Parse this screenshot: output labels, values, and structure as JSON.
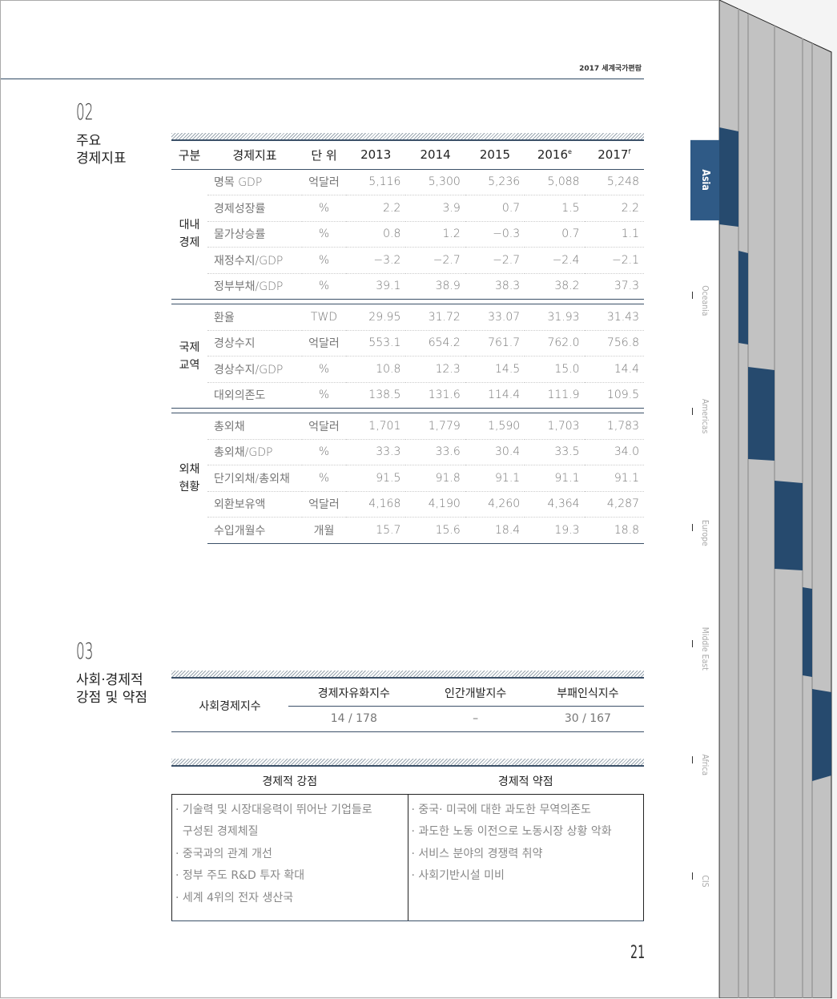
{
  "header": {
    "running_title": "2017 세계국가편람",
    "page_number": "21"
  },
  "section2": {
    "number": "02",
    "title": [
      "주요",
      "경제지표"
    ],
    "columns": [
      "구분",
      "경제지표",
      "단 위",
      "2013",
      "2014",
      "2015",
      "2016",
      "2017"
    ],
    "column_sups": {
      "2016": "e",
      "2017": "f"
    },
    "groups": [
      {
        "category": [
          "대내",
          "경제"
        ],
        "rows": [
          {
            "indicator": "명목 GDP",
            "unit": "억달러",
            "values": [
              "5,116",
              "5,300",
              "5,236",
              "5,088",
              "5,248"
            ]
          },
          {
            "indicator": "경제성장률",
            "unit": "%",
            "values": [
              "2.2",
              "3.9",
              "0.7",
              "1.5",
              "2.2"
            ]
          },
          {
            "indicator": "물가상승률",
            "unit": "%",
            "values": [
              "0.8",
              "1.2",
              "−0.3",
              "0.7",
              "1.1"
            ]
          },
          {
            "indicator": "재정수지/GDP",
            "unit": "%",
            "values": [
              "−3.2",
              "−2.7",
              "−2.7",
              "−2.4",
              "−2.1"
            ]
          },
          {
            "indicator": "정부부채/GDP",
            "unit": "%",
            "values": [
              "39.1",
              "38.9",
              "38.3",
              "38.2",
              "37.3"
            ]
          }
        ]
      },
      {
        "category": [
          "국제",
          "교역"
        ],
        "rows": [
          {
            "indicator": "환율",
            "unit": "TWD",
            "values": [
              "29.95",
              "31.72",
              "33.07",
              "31.93",
              "31.43"
            ]
          },
          {
            "indicator": "경상수지",
            "unit": "억달러",
            "values": [
              "553.1",
              "654.2",
              "761.7",
              "762.0",
              "756.8"
            ]
          },
          {
            "indicator": "경상수지/GDP",
            "unit": "%",
            "values": [
              "10.8",
              "12.3",
              "14.5",
              "15.0",
              "14.4"
            ]
          },
          {
            "indicator": "대외의존도",
            "unit": "%",
            "values": [
              "138.5",
              "131.6",
              "114.4",
              "111.9",
              "109.5"
            ]
          }
        ]
      },
      {
        "category": [
          "외채",
          "현황"
        ],
        "rows": [
          {
            "indicator": "총외채",
            "unit": "억달러",
            "values": [
              "1,701",
              "1,779",
              "1,590",
              "1,703",
              "1,783"
            ]
          },
          {
            "indicator": "총외채/GDP",
            "unit": "%",
            "values": [
              "33.3",
              "33.6",
              "30.4",
              "33.5",
              "34.0"
            ]
          },
          {
            "indicator": "단기외채/총외채",
            "unit": "%",
            "values": [
              "91.5",
              "91.8",
              "91.1",
              "91.1",
              "91.1"
            ]
          },
          {
            "indicator": "외환보유액",
            "unit": "억달러",
            "values": [
              "4,168",
              "4,190",
              "4,260",
              "4,364",
              "4,287"
            ]
          },
          {
            "indicator": "수입개월수",
            "unit": "개월",
            "values": [
              "15.7",
              "15.6",
              "18.4",
              "19.3",
              "18.8"
            ]
          }
        ]
      }
    ]
  },
  "section3": {
    "number": "03",
    "title": [
      "사회·경제적",
      "강점 및 약점"
    ],
    "index_table": {
      "row_label": "사회경제지수",
      "headers": [
        "경제자유화지수",
        "인간개발지수",
        "부패인식지수"
      ],
      "values": [
        "14 / 178",
        "–",
        "30 / 167"
      ]
    },
    "strengths_header": "경제적 강점",
    "weaknesses_header": "경제적 약점",
    "strengths": [
      "· 기술력 및 시장대응력이 뛰어난 기업들로",
      "  구성된 경제체질",
      "· 중국과의 관계 개선",
      "· 정부 주도 R&D 투자 확대",
      "· 세계 4위의 전자 생산국"
    ],
    "weaknesses": [
      "· 중국· 미국에 대한 과도한 무역의존도",
      "· 과도한 노동 이전으로 노동시장 상황 악화",
      "· 서비스 분야의 경쟁력 취약",
      "· 사회기반시설 미비"
    ]
  },
  "side_tabs": {
    "active": "Asia",
    "items": [
      "Asia",
      "Oceania",
      "Americas",
      "Europe",
      "Middle East",
      "Africa",
      "CIS"
    ],
    "accent": "#2f5a86"
  }
}
